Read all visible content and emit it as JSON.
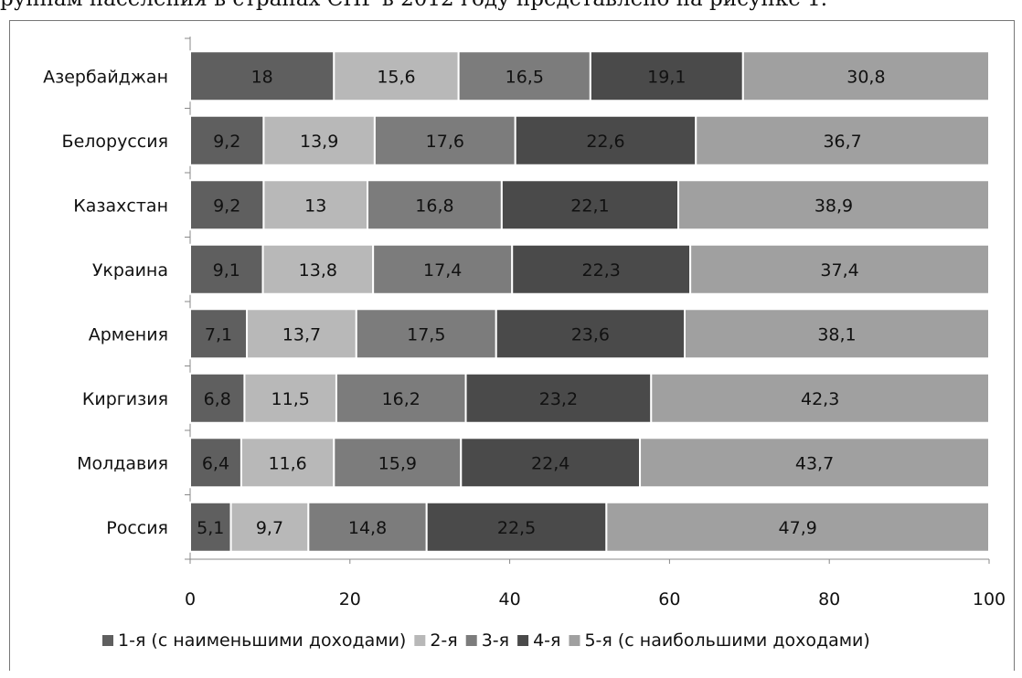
{
  "caption": "руппам населения в странах СНГ в 2012 году представлено на рисунке 1.",
  "chart_data": {
    "type": "bar",
    "orientation": "horizontal",
    "stacked": true,
    "categories": [
      "Азербайджан",
      "Белоруссия",
      "Казахстан",
      "Украина",
      "Армения",
      "Киргизия",
      "Молдавия",
      "Россия"
    ],
    "series": [
      {
        "name": "1-я (с наименьшими доходами)",
        "color": "#5f5f5f",
        "values": [
          18,
          9.2,
          9.2,
          9.1,
          7.1,
          6.8,
          6.4,
          5.1
        ],
        "labels": [
          "18",
          "9,2",
          "9,2",
          "9,1",
          "7,1",
          "6,8",
          "6,4",
          "5,1"
        ]
      },
      {
        "name": "2-я",
        "color": "#b8b8b8",
        "values": [
          15.6,
          13.9,
          13,
          13.8,
          13.7,
          11.5,
          11.6,
          9.7
        ],
        "labels": [
          "15,6",
          "13,9",
          "13",
          "13,8",
          "13,7",
          "11,5",
          "11,6",
          "9,7"
        ]
      },
      {
        "name": "3-я",
        "color": "#7c7c7c",
        "values": [
          16.5,
          17.6,
          16.8,
          17.4,
          17.5,
          16.2,
          15.9,
          14.8
        ],
        "labels": [
          "16,5",
          "17,6",
          "16,8",
          "17,4",
          "17,5",
          "16,2",
          "15,9",
          "14,8"
        ]
      },
      {
        "name": "4-я",
        "color": "#4a4a4a",
        "values": [
          19.1,
          22.6,
          22.1,
          22.3,
          23.6,
          23.2,
          22.4,
          22.5
        ],
        "labels": [
          "19,1",
          "22,6",
          "22,1",
          "22,3",
          "23,6",
          "23,2",
          "22,4",
          "22,5"
        ]
      },
      {
        "name": "5-я (с наибольшими доходами)",
        "color": "#a0a0a0",
        "values": [
          30.8,
          36.7,
          38.9,
          37.4,
          38.1,
          42.3,
          43.7,
          47.9
        ],
        "labels": [
          "30,8",
          "36,7",
          "38,9",
          "37,4",
          "38,1",
          "42,3",
          "43,7",
          "47,9"
        ]
      }
    ],
    "xlim": [
      0,
      100
    ],
    "xticks": [
      0,
      20,
      40,
      60,
      80,
      100
    ],
    "grid": false,
    "legend_position": "bottom"
  }
}
